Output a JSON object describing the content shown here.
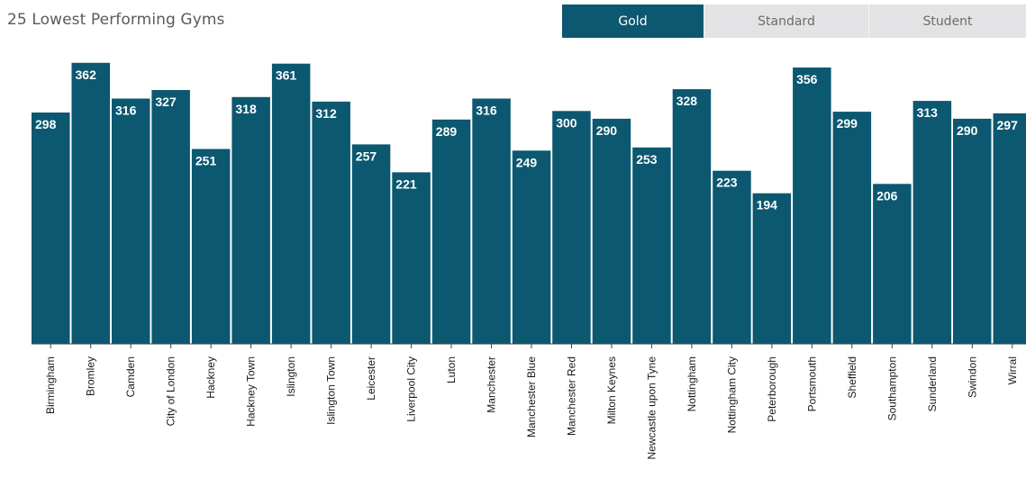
{
  "title": "25 Lowest Performing Gyms",
  "accent_color": "#0b5870",
  "tabs": [
    {
      "label": "Gold",
      "active": true
    },
    {
      "label": "Standard",
      "active": false
    },
    {
      "label": "Student",
      "active": false
    }
  ],
  "chart_data": {
    "type": "bar",
    "title": "25 Lowest Performing Gyms",
    "categories": [
      "Birmingham",
      "Bromley",
      "Camden",
      "City of London",
      "Hackney",
      "Hackney Town",
      "Islington",
      "Islington Town",
      "Leicester",
      "Liverpool City",
      "Luton",
      "Manchester",
      "Manchester Blue",
      "Manchester Red",
      "Milton Keynes",
      "Newcastle upon Tyne",
      "Nottingham",
      "Nottingham City",
      "Peterborough",
      "Portsmouth",
      "Sheffield",
      "Southampton",
      "Sunderland",
      "Swindon",
      "Wirral"
    ],
    "values": [
      298,
      362,
      316,
      327,
      251,
      318,
      361,
      312,
      257,
      221,
      289,
      316,
      249,
      300,
      290,
      253,
      328,
      223,
      194,
      356,
      299,
      206,
      313,
      290,
      297
    ],
    "ylim": [
      0,
      380
    ],
    "bar_color": "#0b5870",
    "data_labels": true
  }
}
